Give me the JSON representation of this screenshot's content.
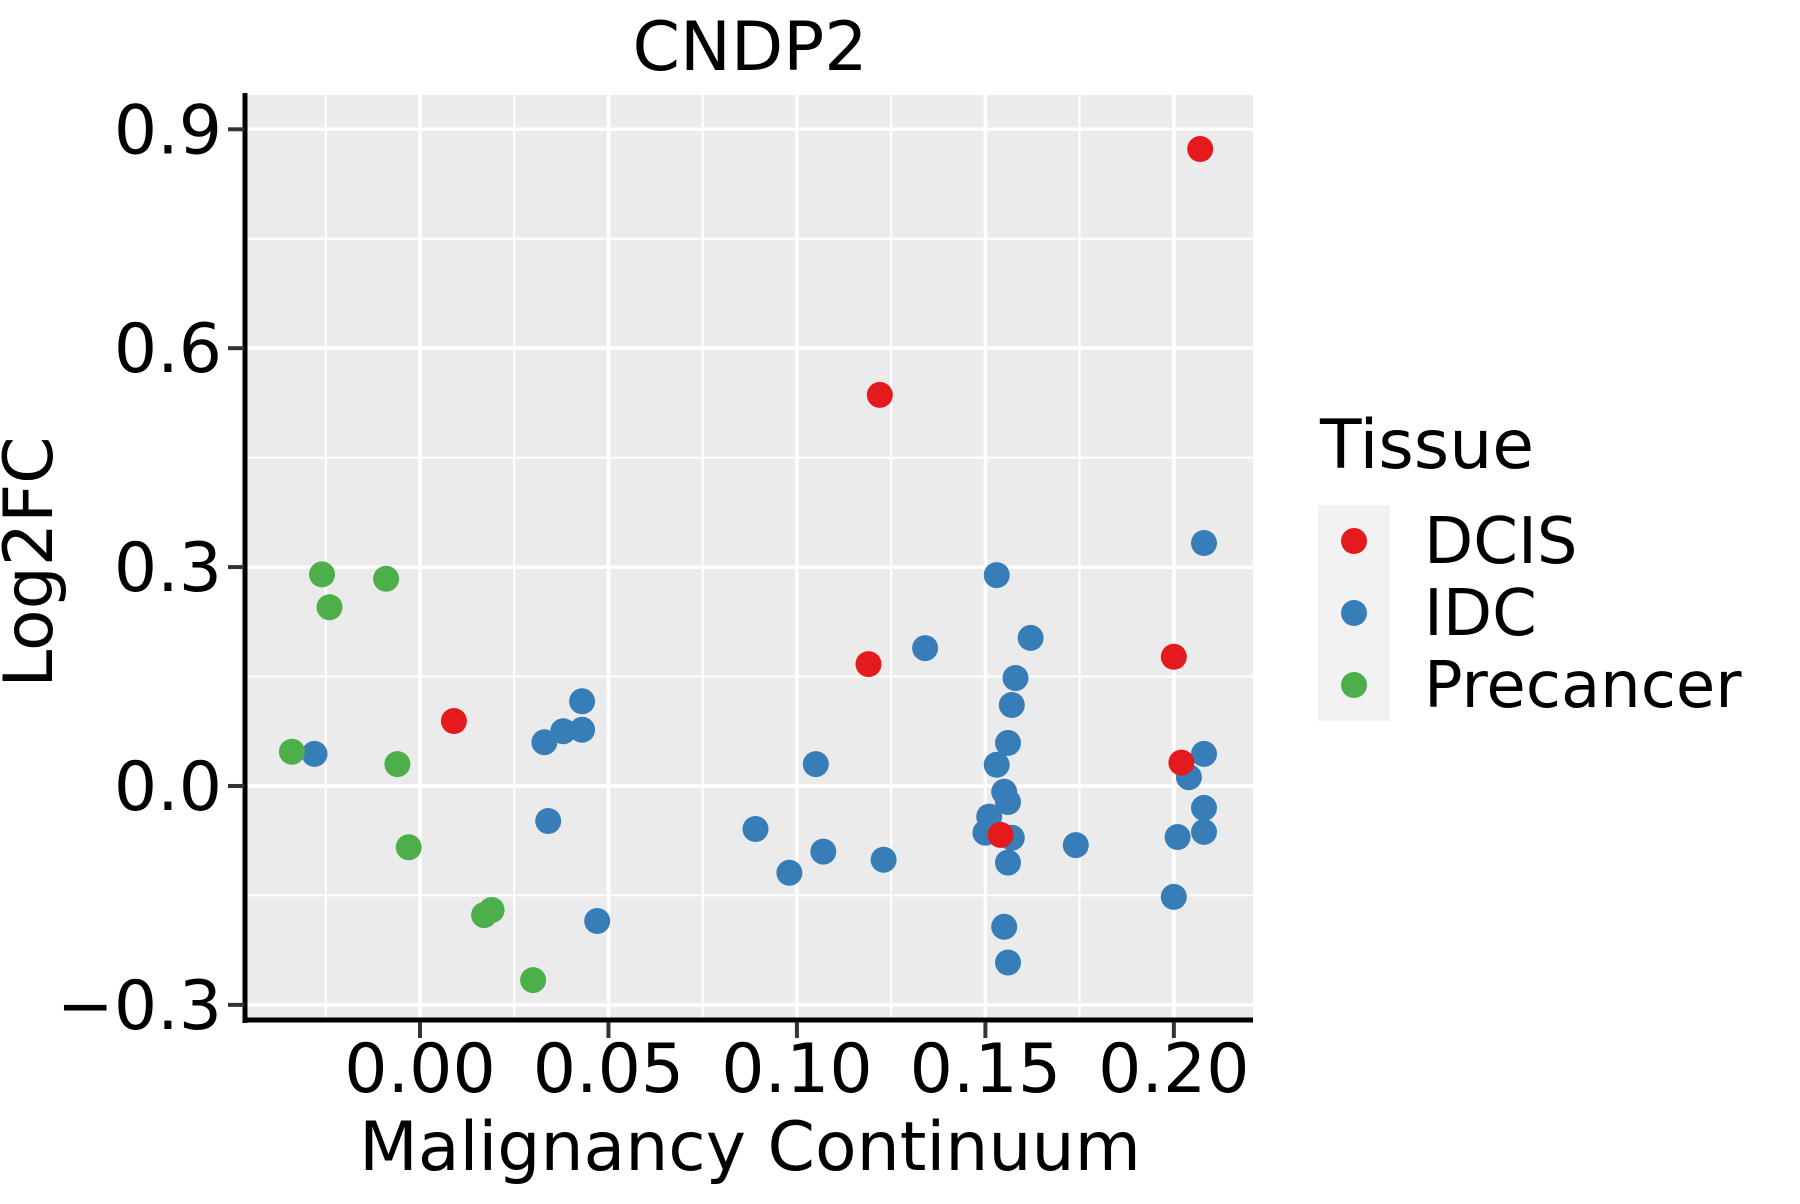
{
  "title": "CNDP2",
  "legend": {
    "title": "Tissue",
    "items": [
      {
        "label": "DCIS",
        "color": "#E41A1C"
      },
      {
        "label": "IDC",
        "color": "#377EB8"
      },
      {
        "label": "Precancer",
        "color": "#4DAF4A"
      }
    ],
    "key_background": "#F2F2F2"
  },
  "chart_data": {
    "type": "scatter",
    "title": "CNDP2",
    "xlabel": "Malignancy Continuum",
    "ylabel": "Log2FC",
    "xlim": [
      -0.0459,
      0.221
    ],
    "ylim": [
      -0.318,
      0.947
    ],
    "x_ticks": [
      0.0,
      0.05,
      0.1,
      0.15,
      0.2
    ],
    "x_tick_labels": [
      "0.00",
      "0.05",
      "0.10",
      "0.15",
      "0.20"
    ],
    "y_ticks": [
      -0.3,
      0.0,
      0.3,
      0.6,
      0.9
    ],
    "y_tick_labels": [
      "−0.3",
      "0.0",
      "0.3",
      "0.6",
      "0.9"
    ],
    "x_minor_ticks": [
      -0.025,
      0.025,
      0.075,
      0.125,
      0.175
    ],
    "y_minor_ticks": [
      -0.15,
      0.15,
      0.45,
      0.75
    ],
    "grid": true,
    "panel_background": "#EBEBEB",
    "grid_color": "#FFFFFF",
    "legend_position": "right",
    "point_radius": 13,
    "series": [
      {
        "name": "DCIS",
        "color": "#E41A1C",
        "points": [
          [
            0.009,
            0.089
          ],
          [
            0.119,
            0.167
          ],
          [
            0.122,
            0.536
          ],
          [
            0.154,
            -0.067
          ],
          [
            0.2,
            0.177
          ],
          [
            0.202,
            0.032
          ],
          [
            0.207,
            0.873
          ]
        ]
      },
      {
        "name": "IDC",
        "color": "#377EB8",
        "points": [
          [
            -0.028,
            0.044
          ],
          [
            0.033,
            0.06
          ],
          [
            0.038,
            0.075
          ],
          [
            0.043,
            0.077
          ],
          [
            0.043,
            0.116
          ],
          [
            0.034,
            -0.048
          ],
          [
            0.047,
            -0.185
          ],
          [
            0.089,
            -0.059
          ],
          [
            0.098,
            -0.119
          ],
          [
            0.105,
            0.03
          ],
          [
            0.107,
            -0.09
          ],
          [
            0.123,
            -0.101
          ],
          [
            0.134,
            0.189
          ],
          [
            0.153,
            0.289
          ],
          [
            0.162,
            0.203
          ],
          [
            0.158,
            0.148
          ],
          [
            0.157,
            0.111
          ],
          [
            0.156,
            0.059
          ],
          [
            0.153,
            0.029
          ],
          [
            0.155,
            -0.008
          ],
          [
            0.156,
            -0.022
          ],
          [
            0.151,
            -0.042
          ],
          [
            0.15,
            -0.064
          ],
          [
            0.157,
            -0.071
          ],
          [
            0.156,
            -0.105
          ],
          [
            0.155,
            -0.193
          ],
          [
            0.156,
            -0.242
          ],
          [
            0.174,
            -0.081
          ],
          [
            0.208,
            0.333
          ],
          [
            0.208,
            0.044
          ],
          [
            0.204,
            0.012
          ],
          [
            0.208,
            -0.03
          ],
          [
            0.201,
            -0.07
          ],
          [
            0.208,
            -0.063
          ],
          [
            0.2,
            -0.152
          ]
        ]
      },
      {
        "name": "Precancer",
        "color": "#4DAF4A",
        "points": [
          [
            -0.026,
            0.29
          ],
          [
            -0.009,
            0.284
          ],
          [
            -0.024,
            0.245
          ],
          [
            -0.034,
            0.047
          ],
          [
            -0.006,
            0.03
          ],
          [
            -0.003,
            -0.084
          ],
          [
            0.017,
            -0.177
          ],
          [
            0.019,
            -0.17
          ],
          [
            0.03,
            -0.266
          ]
        ]
      }
    ]
  }
}
